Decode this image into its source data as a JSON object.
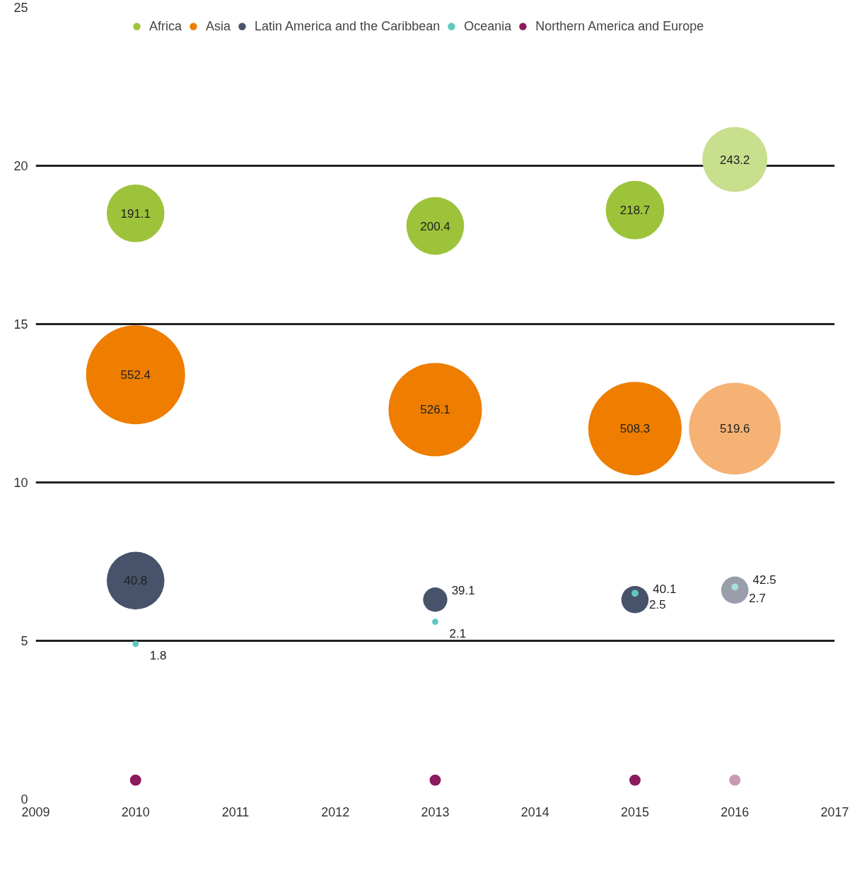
{
  "chart_data": {
    "type": "bubble",
    "x": [
      2010,
      2013,
      2015,
      2016
    ],
    "xlim": [
      2009,
      2017
    ],
    "xticks": [
      2009,
      2010,
      2011,
      2012,
      2013,
      2014,
      2015,
      2016,
      2017
    ],
    "ylim": [
      0,
      25
    ],
    "yticks": [
      0,
      5,
      10,
      15,
      20,
      25
    ],
    "grid": "y",
    "legend": "top",
    "series": [
      {
        "name": "Africa",
        "colors": [
          "#9dc33b",
          "#9dc33b",
          "#9dc33b",
          "#c8df8e"
        ],
        "values": [
          18.5,
          18.1,
          18.6,
          20.2
        ],
        "sizes": [
          0.34,
          0.34,
          0.35,
          0.43
        ]
      },
      {
        "name": "Asia",
        "colors": [
          "#ee7d00",
          "#ee7d00",
          "#ee7d00",
          "#f5b274"
        ],
        "values": [
          13.4,
          12.3,
          11.7,
          11.7
        ],
        "sizes": [
          1,
          0.89,
          0.89,
          0.86
        ]
      },
      {
        "name": "Latin America and the Caribbean",
        "colors": [
          "#47536a",
          "#47536a",
          "#47536a",
          "#9a9eaa"
        ],
        "values": [
          6.9,
          6.3,
          6.3,
          6.6
        ],
        "sizes": [
          0.34,
          0.06,
          0.076,
          0.076
        ]
      },
      {
        "name": "Oceania",
        "colors": [
          "#5fc8c0",
          "#5fc8c0",
          "#5fc8c0",
          "#a9e0dc"
        ],
        "values": [
          4.9,
          5.6,
          6.5,
          6.7
        ],
        "sizes": [
          0.004,
          0.004,
          0.005,
          0.005
        ]
      },
      {
        "name": "Northern America and Europe",
        "colors": [
          "#8b1a5e",
          "#8b1a5e",
          "#8b1a5e",
          "#c99ab6"
        ],
        "values": [
          0.6,
          0.6,
          0.6,
          0.6
        ],
        "sizes": [
          0.013,
          0.013,
          0.013,
          0.013
        ]
      }
    ],
    "annotations": [
      {
        "text": "191.1",
        "x": 2010,
        "y": 18.5
      },
      {
        "text": "200.4",
        "x": 2013,
        "y": 18.1
      },
      {
        "text": "218.7",
        "x": 2015,
        "y": 18.6
      },
      {
        "text": "243.2",
        "x": 2016,
        "y": 20.2
      },
      {
        "text": "552.4",
        "x": 2010,
        "y": 13.4
      },
      {
        "text": "526.1",
        "x": 2013,
        "y": 12.3
      },
      {
        "text": "508.3",
        "x": 2015,
        "y": 11.7
      },
      {
        "text": "519.6",
        "x": 2016,
        "y": 11.7
      },
      {
        "text": "40.8",
        "x": 2010,
        "y": 6.9
      },
      {
        "text": "39.1",
        "x": 2013,
        "y": 6.3
      },
      {
        "text": "40.1",
        "x": 2015,
        "y": 6.3
      },
      {
        "text": "42.5",
        "x": 2016,
        "y": 6.6
      },
      {
        "text": "1.8",
        "x": 2010,
        "y": 4.9
      },
      {
        "text": "2.1",
        "x": 2013,
        "y": 5.6
      },
      {
        "text": "2.5",
        "x": 2015,
        "y": 6.5
      },
      {
        "text": "2.7",
        "x": 2016,
        "y": 6.7
      }
    ]
  }
}
